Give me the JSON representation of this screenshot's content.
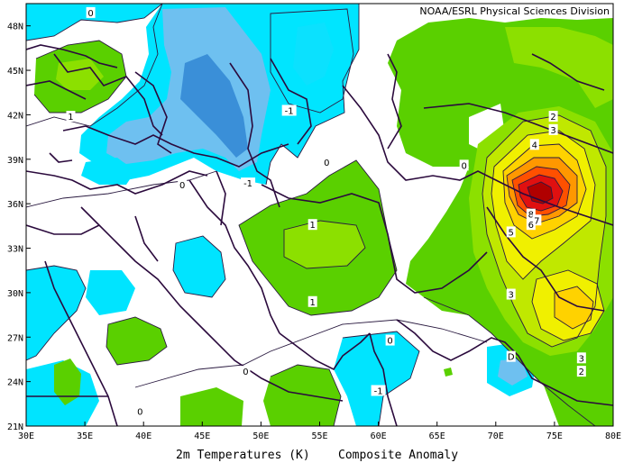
{
  "credit": "NOAA/ESRL Physical Sciences Division",
  "caption": {
    "variable": "2m Temperatures (K)",
    "type": "Composite Anomaly"
  },
  "axes": {
    "lon_ticks": [
      "30E",
      "35E",
      "40E",
      "45E",
      "50E",
      "55E",
      "60E",
      "65E",
      "70E",
      "75E",
      "80E"
    ],
    "lat_ticks": [
      "48N",
      "45N",
      "42N",
      "39N",
      "36N",
      "33N",
      "30N",
      "27N",
      "24N",
      "21N"
    ]
  },
  "contour_labels": [
    {
      "text": "0",
      "lon": 35.5,
      "lat": 48.9
    },
    {
      "text": "1",
      "lon": 33.8,
      "lat": 41.9
    },
    {
      "text": "-1",
      "lon": 52.4,
      "lat": 42.3
    },
    {
      "text": "-1",
      "lon": 48.9,
      "lat": 37.4
    },
    {
      "text": "0",
      "lon": 55.6,
      "lat": 38.8
    },
    {
      "text": "0",
      "lon": 43.3,
      "lat": 37.3
    },
    {
      "text": "1",
      "lon": 54.4,
      "lat": 34.6
    },
    {
      "text": "1",
      "lon": 54.4,
      "lat": 29.4
    },
    {
      "text": "0",
      "lon": 61.0,
      "lat": 26.8
    },
    {
      "text": "0",
      "lon": 48.7,
      "lat": 24.7
    },
    {
      "text": "-1",
      "lon": 60.0,
      "lat": 23.4
    },
    {
      "text": "0",
      "lon": 39.7,
      "lat": 22.0
    },
    {
      "text": "0",
      "lon": 67.3,
      "lat": 38.6
    },
    {
      "text": "2",
      "lon": 74.9,
      "lat": 41.9
    },
    {
      "text": "3",
      "lon": 74.9,
      "lat": 41.0
    },
    {
      "text": "4",
      "lon": 73.3,
      "lat": 40.0
    },
    {
      "text": "8",
      "lon": 73.0,
      "lat": 35.3
    },
    {
      "text": "7",
      "lon": 73.5,
      "lat": 34.9
    },
    {
      "text": "6",
      "lon": 73.0,
      "lat": 34.6
    },
    {
      "text": "5",
      "lon": 71.3,
      "lat": 34.1
    },
    {
      "text": "3",
      "lon": 71.3,
      "lat": 29.9
    },
    {
      "text": "D",
      "lon": 71.3,
      "lat": 25.7
    },
    {
      "text": "3",
      "lon": 77.3,
      "lat": 25.6
    },
    {
      "text": "2",
      "lon": 77.3,
      "lat": 24.7
    }
  ],
  "colors": {
    "neg2": "#3a8fd8",
    "neg1_5": "#6ec0f0",
    "neg1": "#00e4ff",
    "pos1": "#5ad000",
    "pos1_5": "#8ce000",
    "pos2": "#c0e800",
    "pos3": "#f0f000",
    "pos4": "#ffd200",
    "pos5": "#ff9800",
    "pos6": "#ff5000",
    "pos7": "#e01010",
    "pos8": "#b00000"
  }
}
